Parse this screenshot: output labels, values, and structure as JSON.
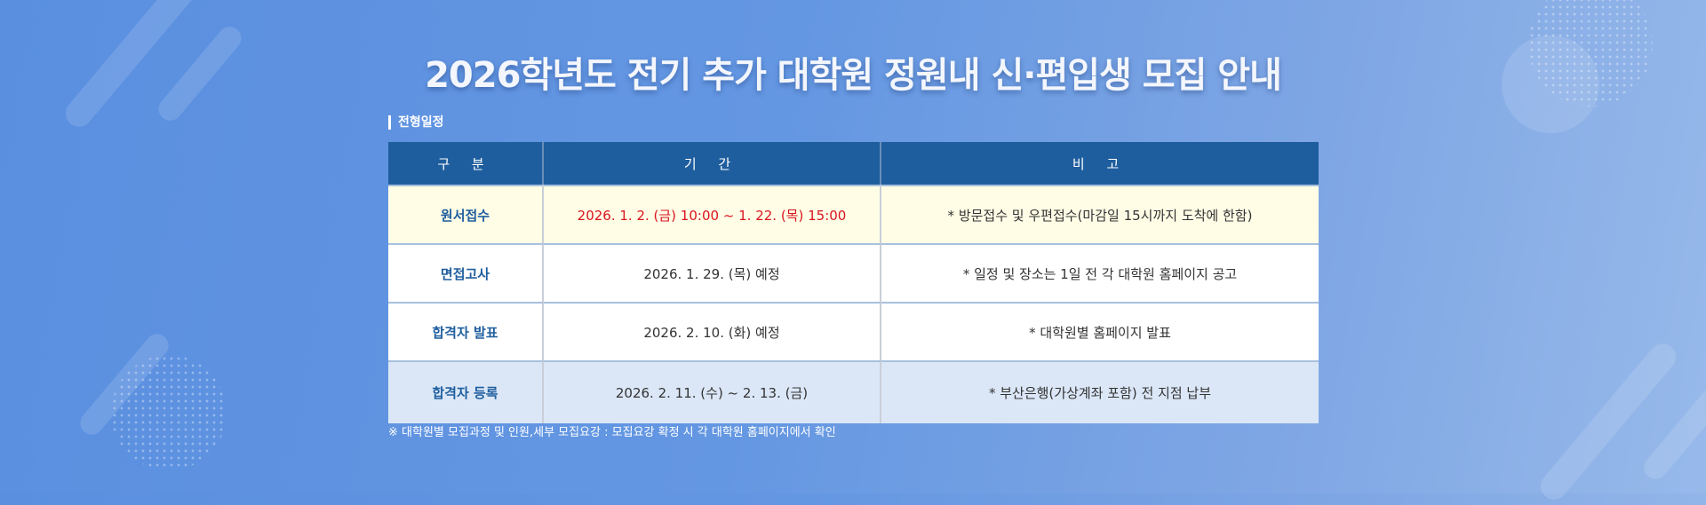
{
  "title": "2026학년도 전기 추가 대학원 정원내 신·편입생 모집 안내",
  "section": "전형일정",
  "table": {
    "headers": [
      "구 분",
      "기 간",
      "비 고"
    ],
    "rows": [
      {
        "category": "원서접수",
        "period": "2026. 1. 2. (금) 10:00 ~ 1. 22. (목) 15:00",
        "note": "* 방문접수 및 우편접수(마감일 15시까지 도착에 한함)"
      },
      {
        "category": "면접고사",
        "period": "2026. 1. 29. (목) 예정",
        "note": "* 일정 및 장소는 1일 전 각 대학원 홈페이지 공고"
      },
      {
        "category": "합격자 발표",
        "period": "2026. 2. 10. (화) 예정",
        "note": "* 대학원별 홈페이지 발표"
      },
      {
        "category": "합격자 등록",
        "period": "2026. 2. 11. (수) ~ 2. 13. (금)",
        "note": "* 부산은행(가상계좌 포함) 전 지점 납부"
      }
    ]
  },
  "footnote": "※ 대학원별 모집과정 및 인원,세부 모집요강 : 모집요강 확정 시 각 대학원 홈페이지에서 확인",
  "colors": {
    "header": "#1f5e9e",
    "highlight_text": "#d9141e",
    "highlight_row": "#fffde6",
    "last_row": "#dbe7f7"
  }
}
